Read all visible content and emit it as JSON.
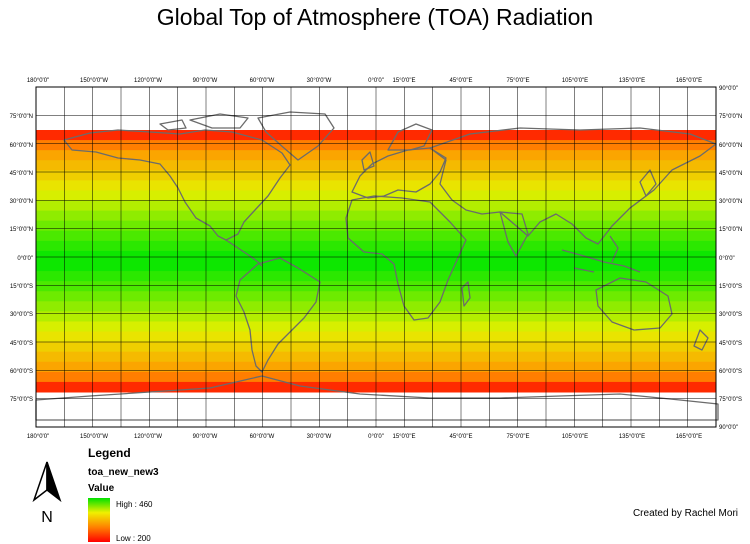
{
  "title": "Global Top of Atmosphere (TOA) Radiation",
  "top_ticks": [
    "180°0'0\"",
    "150°0'0\"W",
    "120°0'0\"W",
    "90°0'0\"W",
    "60°0'0\"W",
    "30°0'0\"W",
    "0°0'0\"",
    "15°0'0\"E",
    "45°0'0\"E",
    "75°0'0\"E",
    "105°0'0\"E",
    "135°0'0\"E",
    "165°0'0\"E"
  ],
  "bottom_ticks": [
    "180°0'0\"",
    "150°0'0\"W",
    "120°0'0\"W",
    "90°0'0\"W",
    "60°0'0\"W",
    "30°0'0\"W",
    "0°0'0\"",
    "15°0'0\"E",
    "45°0'0\"E",
    "75°0'0\"E",
    "105°0'0\"E",
    "135°0'0\"E",
    "165°0'0\"E"
  ],
  "left_ticks": [
    "75°0'0\"N",
    "60°0'0\"N",
    "45°0'0\"N",
    "30°0'0\"N",
    "15°0'0\"N",
    "0°0'0\"",
    "15°0'0\"S",
    "30°0'0\"S",
    "45°0'0\"S",
    "60°0'0\"S",
    "75°0'0\"S"
  ],
  "right_ticks": [
    "90°0'0\"",
    "75°0'0\"N",
    "60°0'0\"N",
    "45°0'0\"N",
    "30°0'0\"N",
    "15°0'0\"N",
    "0°0'0\"",
    "15°0'0\"S",
    "30°0'0\"S",
    "45°0'0\"S",
    "60°0'0\"S",
    "75°0'0\"S",
    "90°0'0\""
  ],
  "legend": {
    "heading": "Legend",
    "layer": "toa_new_new3",
    "field": "Value",
    "high_label": "High : 460",
    "low_label": "Low : 200"
  },
  "north_label": "N",
  "credit": "Created by Rachel Mori",
  "colors": {
    "high": "#00e600",
    "mid": "#e6f000",
    "low": "#ff0000",
    "coastline": "#6b6b6b",
    "graticule": "#000000"
  }
}
